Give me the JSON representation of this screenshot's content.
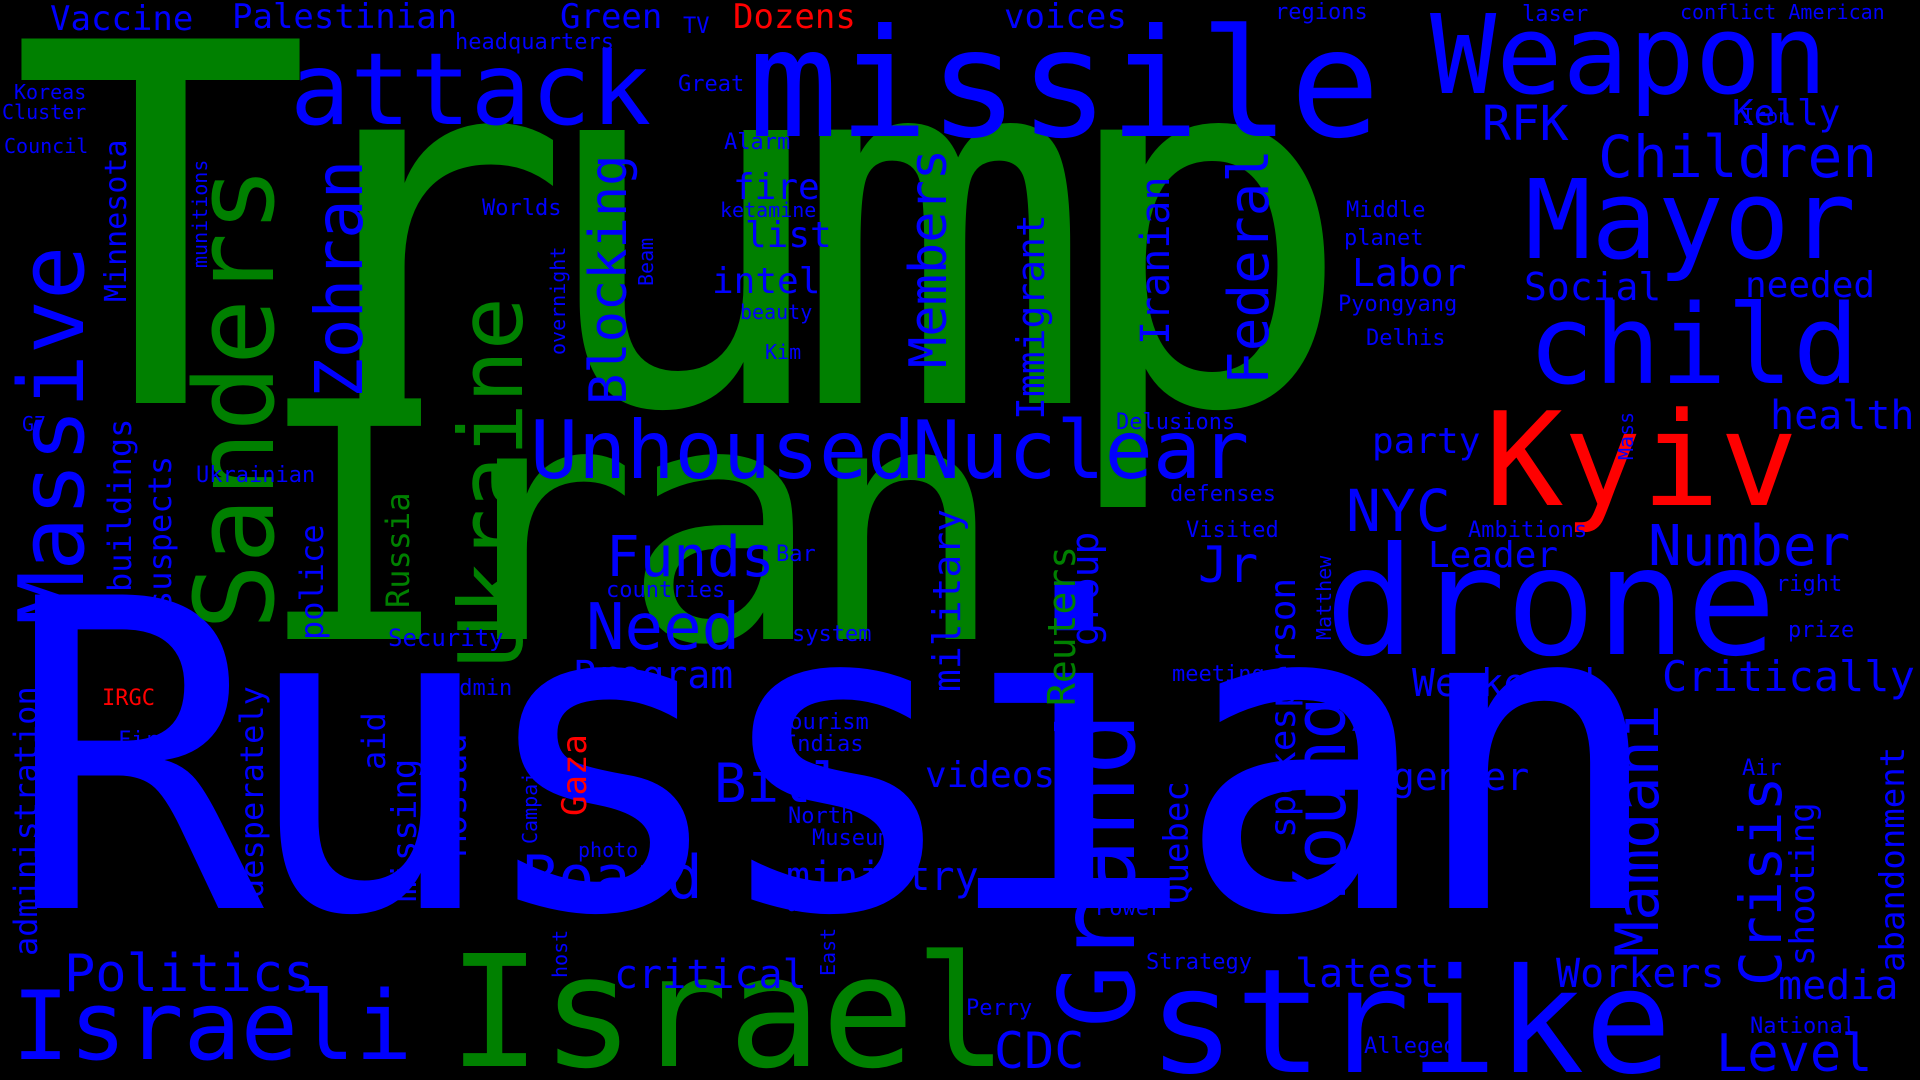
{
  "colors": {
    "background": "#000000",
    "blue": "#0000ff",
    "green": "#008000",
    "red": "#ff0000"
  },
  "words": [
    "Trump",
    "Russian",
    "Iran",
    "missile",
    "Weapon",
    "attack",
    "Sanders",
    "Ukraine",
    "Massive",
    "Mayor",
    "child",
    "drone",
    "Kyiv",
    "Israel",
    "strike",
    "Israeli",
    "Grand",
    "Unhoused",
    "Nuclear",
    "Zohran",
    "Blocking",
    "Members",
    "Federal",
    "Iranian",
    "Immigrant",
    "Children",
    "RFK",
    "Kelly",
    "Social",
    "needed",
    "health",
    "Number",
    "NYC",
    "Jr",
    "Funds",
    "Need",
    "Board",
    "Bill",
    "Program",
    "Politics",
    "critical",
    "latest",
    "Workers",
    "media",
    "Level",
    "CDC",
    "Crisis",
    "Mamdani",
    "Young",
    "spokesperson",
    "Reuters",
    "group",
    "military",
    "Weakened.",
    "Critically",
    "gender",
    "videos",
    "ministry",
    "Leader",
    "Labor",
    "party",
    "intel",
    "list",
    "fire",
    "voices",
    "Green",
    "Palestinian",
    "Vaccine",
    "Dozens",
    "headquarters",
    "TV",
    "regions",
    "laser",
    "conflict American",
    "Great",
    "Alarm",
    "ketamine",
    "beauty",
    "Kim",
    "Worlds",
    "Middle",
    "planet",
    "Pyongyang",
    "Delhis",
    "Koreas",
    "Cluster",
    "Council",
    "Minnesota",
    "munitions",
    "overnight",
    "Beam",
    "G7",
    "Ukrainian",
    "buildings",
    "suspects",
    "police",
    "Russia",
    "Security",
    "desperately",
    "administration",
    "IRGC",
    "Firms",
    "Association",
    "aid",
    "missing",
    "Mossad",
    "Campaign",
    "Gaza",
    "photo",
    "host",
    "North",
    "Museum",
    "Tourism",
    "Indias",
    "death",
    "East",
    "Bar",
    "countries",
    "system",
    "Admin",
    "Delusions",
    "defenses",
    "Visited",
    "meeting",
    "Quebec",
    "Matthew",
    "Ambitions",
    "right",
    "prize",
    "Iron",
    "Mass",
    "Air",
    "abandonment",
    "shooting",
    "National",
    "Alleged",
    "Law",
    "Power",
    "Strategy",
    "Perry"
  ]
}
